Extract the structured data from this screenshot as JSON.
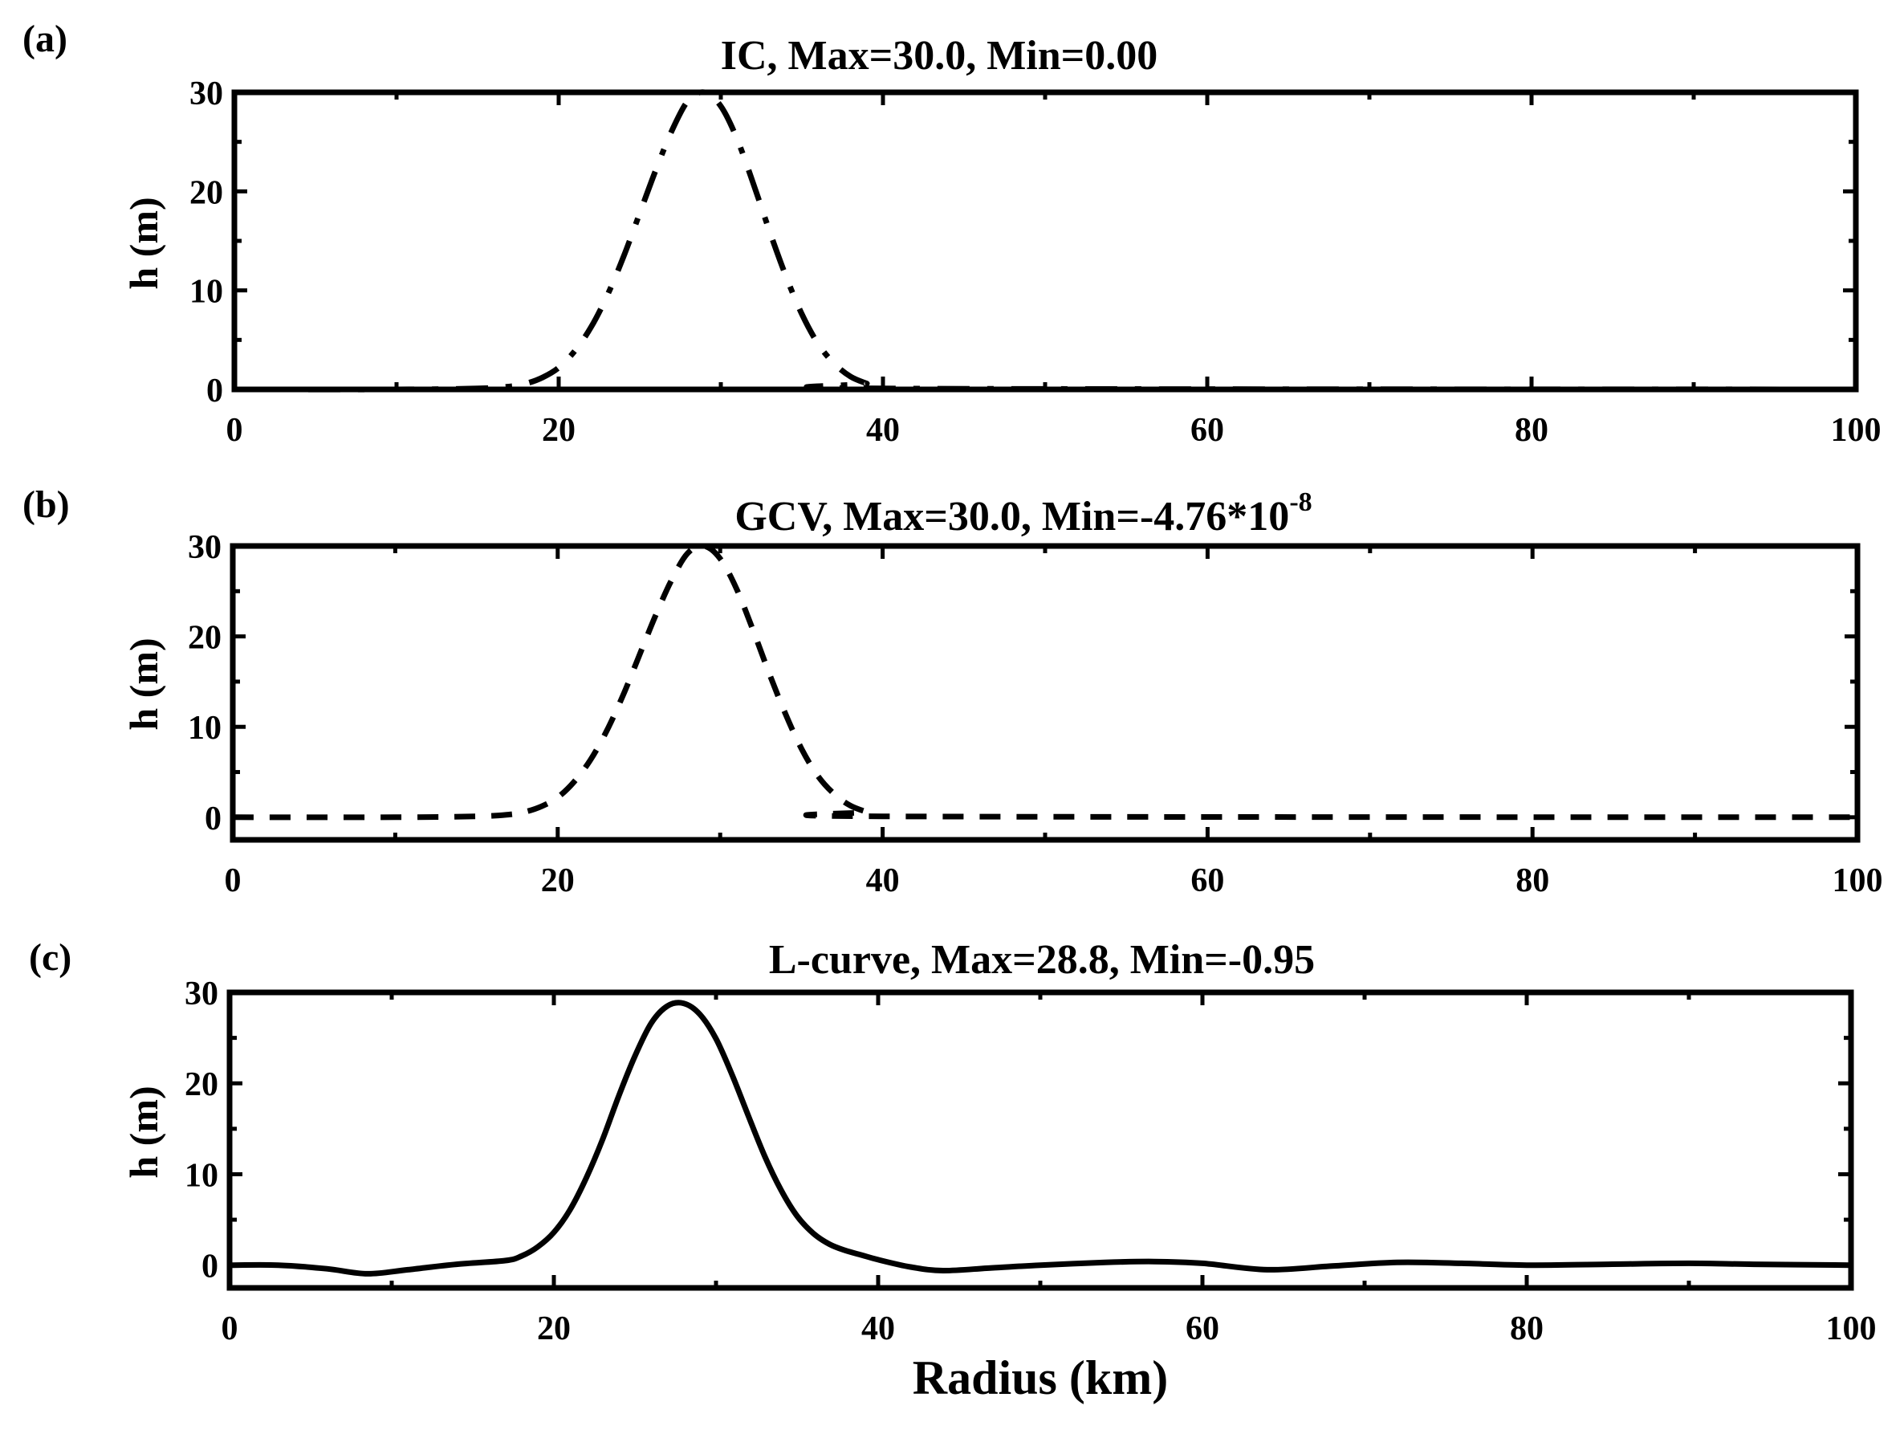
{
  "figure": {
    "xlabel": "Radius (km)",
    "panels": [
      {
        "panel_label": "(a)",
        "title": "IC, Max=30.0, Min=0.00",
        "title_sup": "",
        "ylabel": "h (m)",
        "line_style": "dashdot"
      },
      {
        "panel_label": "(b)",
        "title": "GCV, Max=30.0, Min=-4.76*10",
        "title_sup": "-8",
        "ylabel": "h (m)",
        "line_style": "dashed"
      },
      {
        "panel_label": "(c)",
        "title": "L-curve, Max=28.8, Min=-0.95",
        "title_sup": "",
        "ylabel": "h (m)",
        "line_style": "solid"
      }
    ]
  },
  "chart_data": [
    {
      "type": "line",
      "title": "IC, Max=30.0, Min=0.00",
      "xlabel": "",
      "ylabel": "h (m)",
      "xlim": [
        0,
        100
      ],
      "ylim": [
        0,
        30
      ],
      "xticks": [
        0,
        20,
        40,
        60,
        80,
        100
      ],
      "yticks": [
        0,
        10,
        20,
        30
      ],
      "grid": false,
      "series": [
        {
          "name": "IC",
          "style": "dashdot",
          "x": [
            0,
            10,
            15,
            17,
            18,
            19,
            20,
            21,
            22,
            23,
            24,
            25,
            26,
            27,
            28,
            29,
            30,
            31,
            32,
            33,
            34,
            35,
            36,
            37,
            38,
            39,
            40,
            100
          ],
          "y": [
            0,
            0,
            0.1,
            0.3,
            0.6,
            1.2,
            2.2,
            3.9,
            6.3,
            9.5,
            13.4,
            17.8,
            22.2,
            26.2,
            29.2,
            30.0,
            28.6,
            25.3,
            20.8,
            16.0,
            11.5,
            7.6,
            4.6,
            2.6,
            1.3,
            0.6,
            0.1,
            0
          ]
        }
      ]
    },
    {
      "type": "line",
      "title": "GCV, Max=30.0, Min=-4.76*10^-8",
      "xlabel": "",
      "ylabel": "h (m)",
      "xlim": [
        0,
        100
      ],
      "ylim": [
        -2.5,
        30
      ],
      "xticks": [
        0,
        20,
        40,
        60,
        80,
        100
      ],
      "yticks": [
        0,
        10,
        20,
        30
      ],
      "grid": false,
      "series": [
        {
          "name": "GCV",
          "style": "dashed",
          "x": [
            0,
            10,
            15,
            17,
            18,
            19,
            20,
            21,
            22,
            23,
            24,
            25,
            26,
            27,
            28,
            29,
            30,
            31,
            32,
            33,
            34,
            35,
            36,
            37,
            38,
            39,
            40,
            100
          ],
          "y": [
            0,
            0,
            0.1,
            0.3,
            0.6,
            1.2,
            2.2,
            3.9,
            6.3,
            9.5,
            13.4,
            17.8,
            22.2,
            26.2,
            29.2,
            30.0,
            28.6,
            25.3,
            20.8,
            16.0,
            11.5,
            7.6,
            4.6,
            2.6,
            1.3,
            0.6,
            0.1,
            0
          ]
        }
      ]
    },
    {
      "type": "line",
      "title": "L-curve, Max=28.8, Min=-0.95",
      "xlabel": "Radius (km)",
      "ylabel": "h (m)",
      "xlim": [
        0,
        100
      ],
      "ylim": [
        -2.5,
        30
      ],
      "xticks": [
        0,
        20,
        40,
        60,
        80,
        100
      ],
      "yticks": [
        0,
        10,
        20,
        30
      ],
      "grid": false,
      "series": [
        {
          "name": "L-curve",
          "style": "solid",
          "x": [
            0,
            3,
            6,
            8.5,
            11,
            14,
            17,
            18,
            19,
            20,
            21,
            22,
            23,
            24,
            25,
            26,
            27,
            28,
            29,
            30,
            31,
            32,
            33,
            34,
            35,
            36,
            37,
            38,
            39,
            40,
            42,
            44,
            47,
            50,
            54,
            57,
            60,
            64,
            68,
            72,
            76,
            80,
            85,
            90,
            94,
            100
          ],
          "y": [
            0,
            0,
            -0.4,
            -0.95,
            -0.5,
            0.1,
            0.5,
            1.0,
            2.0,
            3.6,
            6.1,
            9.6,
            13.8,
            18.6,
            23.0,
            26.6,
            28.5,
            28.8,
            27.6,
            24.9,
            20.9,
            16.4,
            12.0,
            8.3,
            5.4,
            3.5,
            2.3,
            1.6,
            1.1,
            0.6,
            -0.2,
            -0.6,
            -0.3,
            0,
            0.3,
            0.4,
            0.2,
            -0.5,
            -0.1,
            0.3,
            0.2,
            0,
            0.1,
            0.2,
            0.1,
            0
          ]
        }
      ]
    }
  ]
}
